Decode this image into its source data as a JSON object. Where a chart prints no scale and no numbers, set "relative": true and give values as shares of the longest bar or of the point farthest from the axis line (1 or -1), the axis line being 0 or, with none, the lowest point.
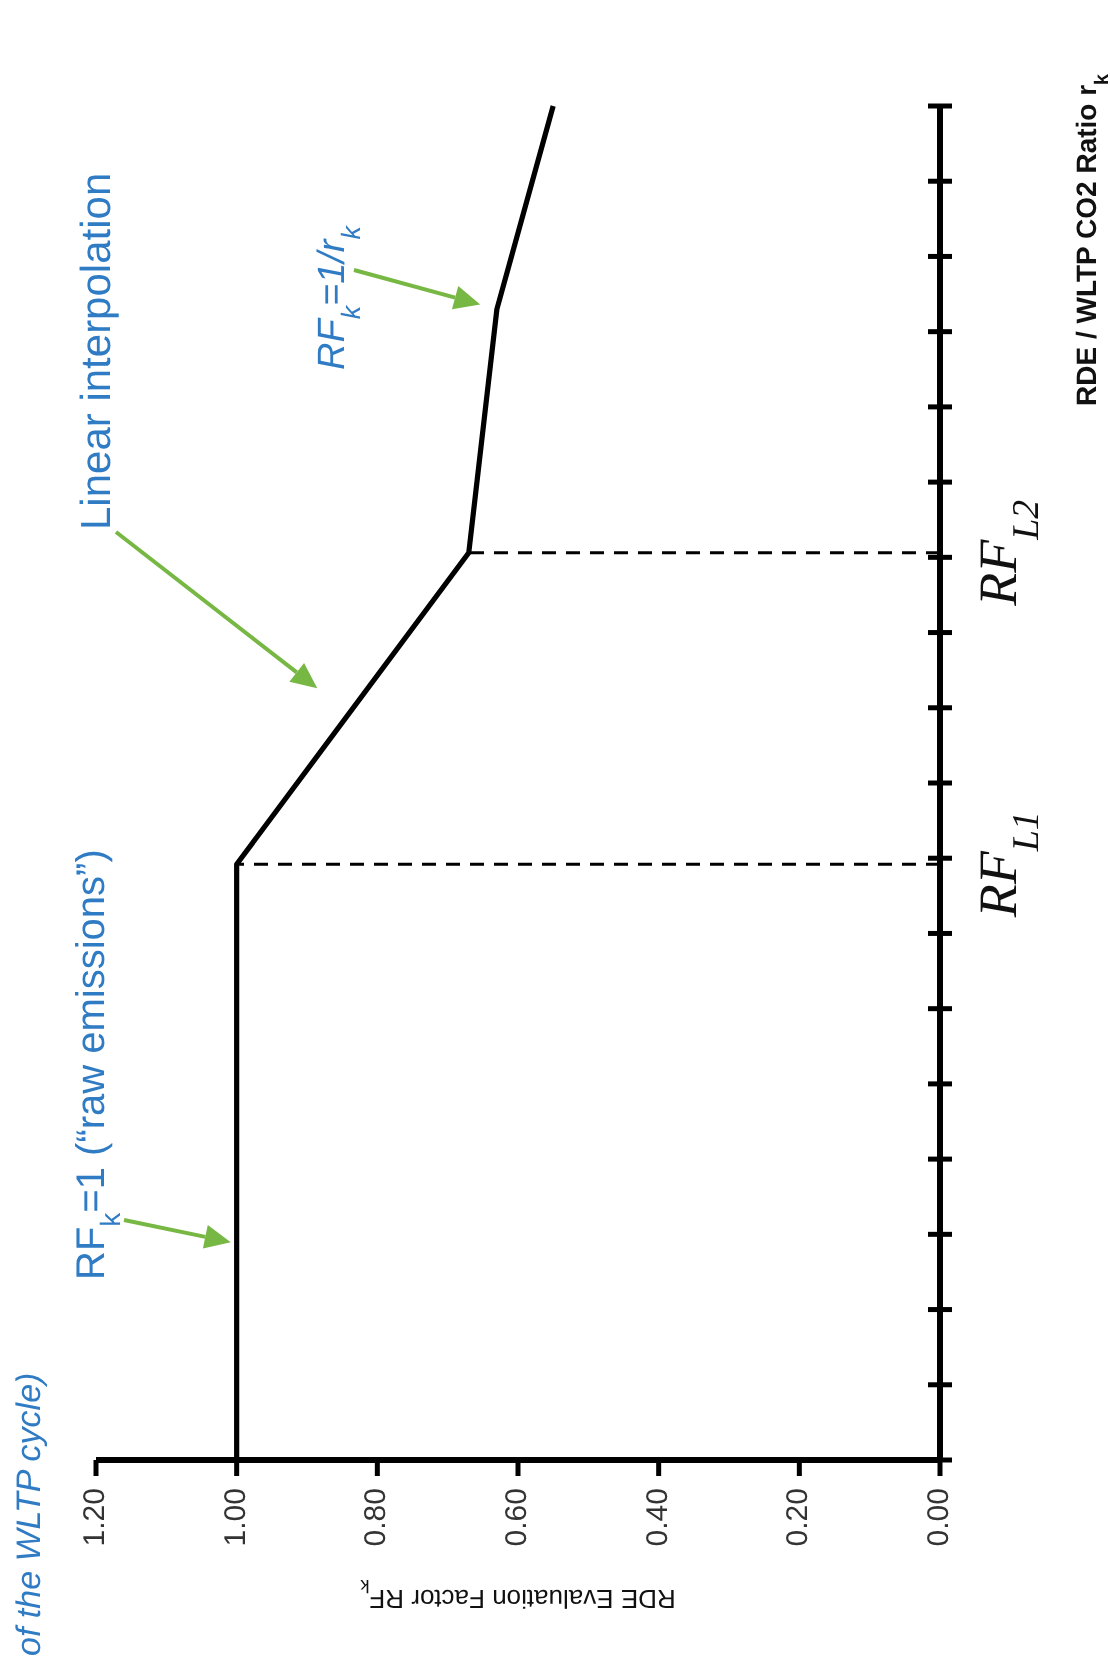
{
  "chart_data": {
    "type": "line",
    "relative": true,
    "xlabel": "RDE Evaluation Factor  RF$_{k}$",
    "ylabel": "RDE / WLTP CO2 Ratio  r$_{k}$",
    "x": [
      1,
      1,
      0.67,
      0.63,
      0.55
    ],
    "series": [
      {
        "color": "#000000",
        "values": [
          0,
          0.44,
          0.67,
          0.85,
          1
        ]
      }
    ],
    "xlim": [
      1.2,
      0
    ],
    "xticks": [
      {
        "value": 1.2,
        "label": "1.20"
      },
      {
        "value": 1,
        "label": "1.00"
      },
      {
        "value": 0.8,
        "label": "0.80"
      },
      {
        "value": 0.6,
        "label": "0.60"
      },
      {
        "value": 0.4,
        "label": "0.40"
      },
      {
        "value": 0.2,
        "label": "0.20"
      },
      {
        "value": 0,
        "label": "0.00"
      }
    ],
    "ref_lines": [
      {
        "axis": "y",
        "value": 0.44,
        "label": "RF$_{L1}$",
        "color": "#000000",
        "line_style": "dashed"
      },
      {
        "axis": "y",
        "value": 0.67,
        "label": "RF$_{L2}$",
        "color": "#000000",
        "line_style": "dashed"
      }
    ],
    "annotations": [
      "Linear interpolation",
      "RF$_{k}$=1/r$_{k}$",
      {
        "text": "RF$_{k}$=1  (“raw emissions”)",
        "x": 1,
        "y": 0.16
      },
      "of the WLTP cycle)"
    ]
  }
}
